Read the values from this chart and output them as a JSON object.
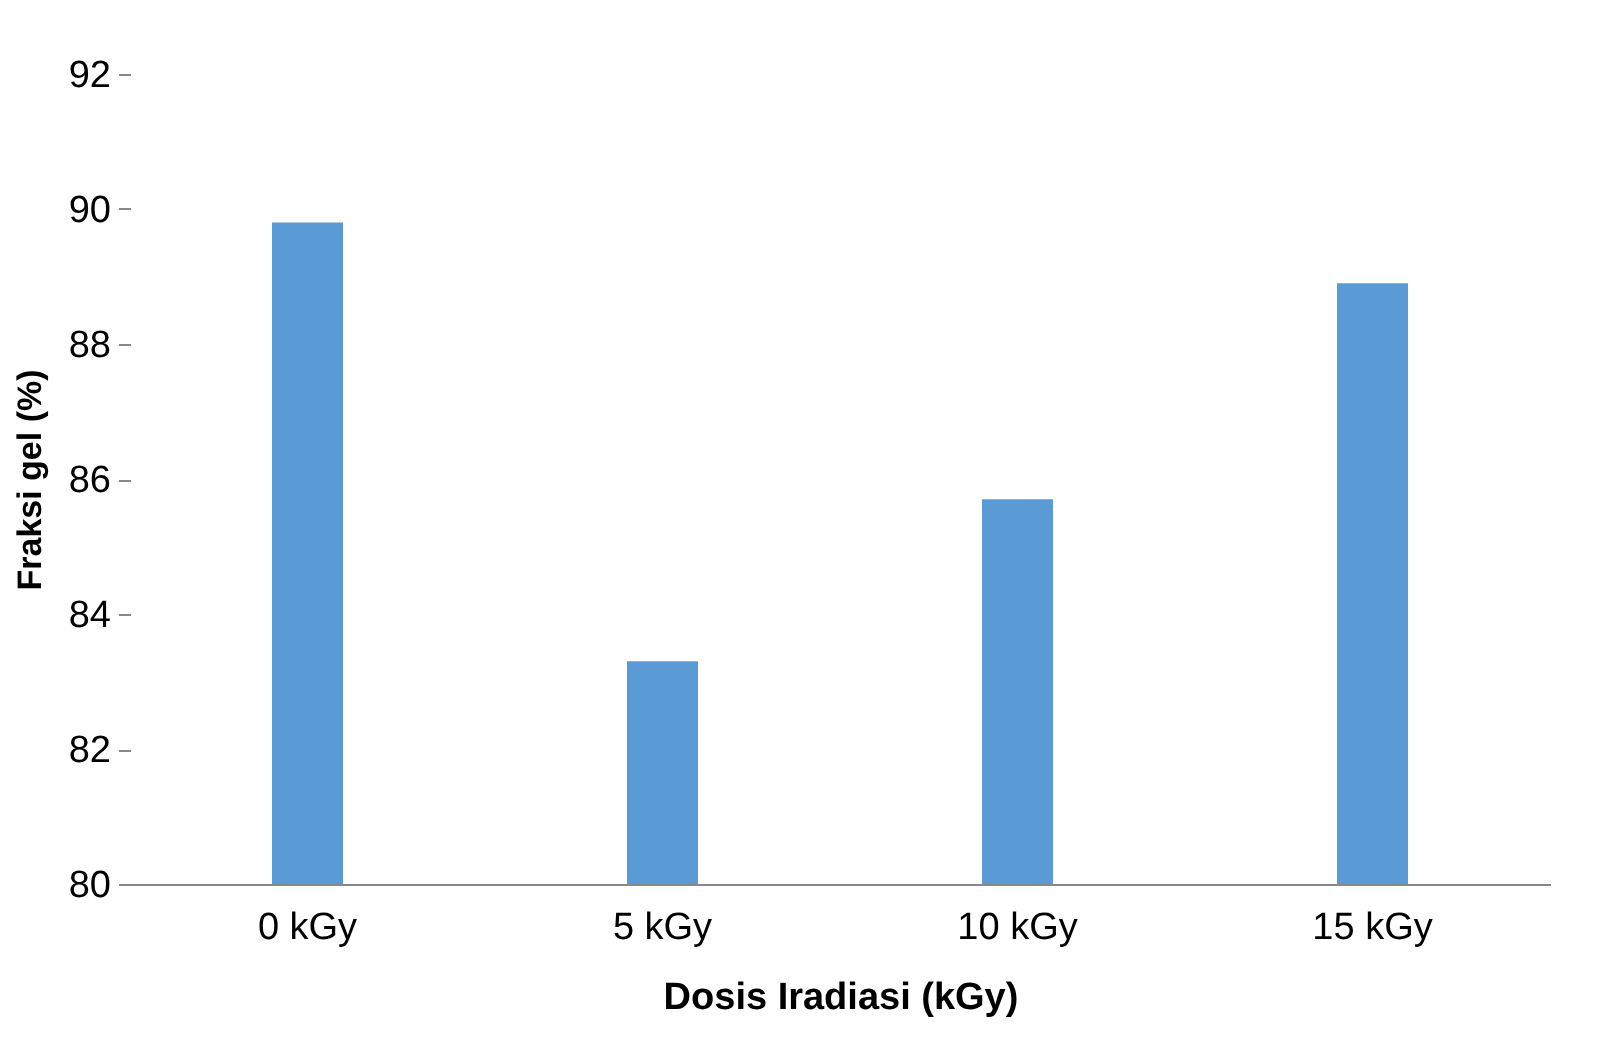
{
  "chart_data": {
    "type": "bar",
    "xlabel": "Dosis Iradiasi (kGy)",
    "ylabel": "Fraksi gel (%)",
    "categories": [
      "0 kGy",
      "5 kGy",
      "10 kGy",
      "15 kGy"
    ],
    "values": [
      89.8,
      83.3,
      85.7,
      88.9
    ],
    "color": "#5b9bd5",
    "ylim": [
      80,
      92
    ],
    "yticks": [
      80,
      82,
      84,
      86,
      88,
      90,
      92
    ],
    "grid": false
  }
}
